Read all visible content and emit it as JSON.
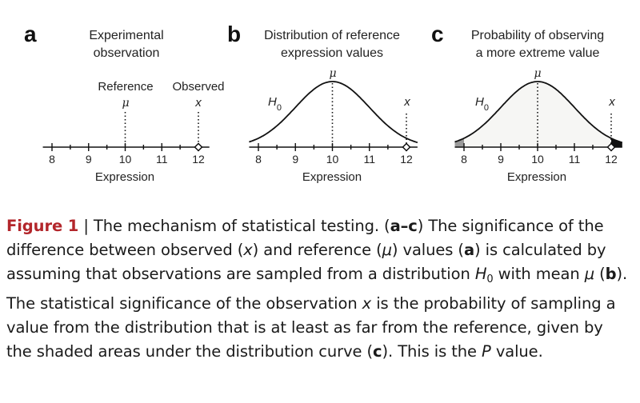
{
  "panels": [
    {
      "letter": "a",
      "title": [
        "Experimental",
        "observation"
      ],
      "reference_label": "Reference",
      "observed_label": "Observed",
      "mu_symbol": "μ",
      "x_symbol": "x",
      "xlabel": "Expression"
    },
    {
      "letter": "b",
      "title": [
        "Distribution of reference",
        "expression values"
      ],
      "h0_label": "H",
      "h0_sub": "0",
      "mu_symbol": "μ",
      "x_symbol": "x",
      "xlabel": "Expression"
    },
    {
      "letter": "c",
      "title": [
        "Probability of observing",
        "a more extreme value"
      ],
      "h0_label": "H",
      "h0_sub": "0",
      "mu_symbol": "μ",
      "x_symbol": "x",
      "xlabel": "Expression"
    }
  ],
  "chart_data": {
    "type": "line",
    "x_ticks": [
      8,
      9,
      10,
      11,
      12
    ],
    "xlim": [
      7.75,
      12.3
    ],
    "reference_value": 10,
    "observed_value": 12,
    "distribution": {
      "kind": "normal",
      "mean": 10,
      "sd": 1
    },
    "shaded_regions": [
      {
        "from": 7.75,
        "to": 8,
        "color": "#9a9a9a"
      },
      {
        "from": 12,
        "to": 12.3,
        "color": "#111111"
      }
    ],
    "xlabel": "Expression"
  },
  "caption": {
    "figure_label": "Figure 1",
    "separator": " | ",
    "s1": "The mechanism of statistical testing. (",
    "s2": "a–c",
    "s3": ") The significance of the difference between observed (",
    "s4": "x",
    "s5": ") and reference (",
    "s6": "μ",
    "s7": ") values (",
    "s8": "a",
    "s9": ") is calculated by assuming that observations are sampled from a distribution ",
    "s10": "H",
    "s11": "0",
    "s12": " with mean ",
    "s13": "μ",
    "s14": " (",
    "s15": "b",
    "s16": "). The statistical significance of the observation ",
    "s17": "x",
    "s18": " is the probability of sampling a value from the distribution that is at least as far from the reference, given by the shaded areas under the distribution curve (",
    "s19": "c",
    "s20": "). This is the ",
    "s21": "P",
    "s22": " value."
  }
}
